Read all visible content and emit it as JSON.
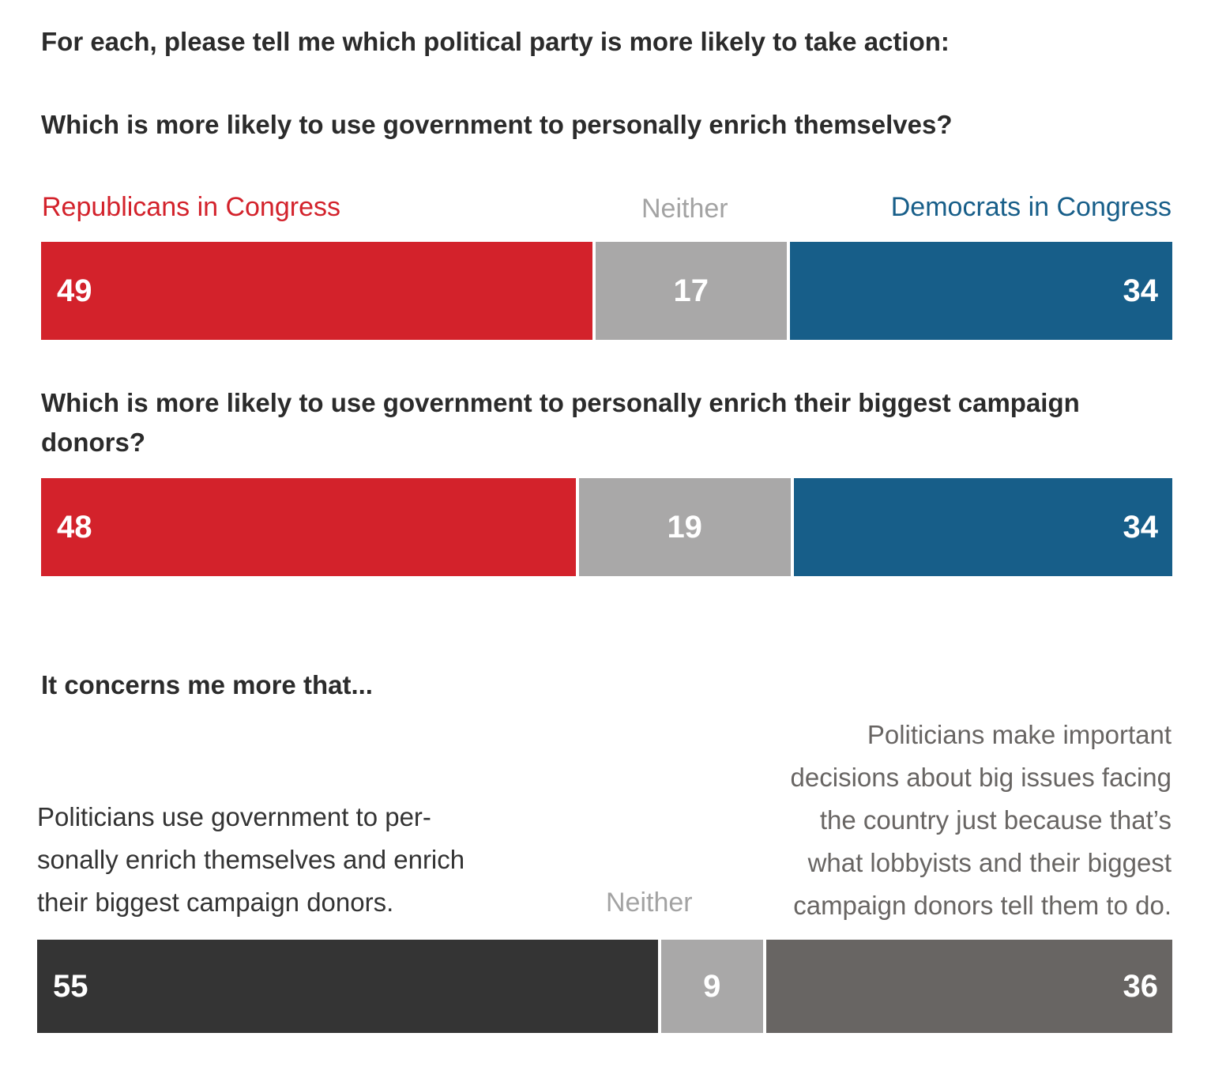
{
  "intro": "For each, please tell me which political party is more likely to take action:",
  "chart_data": [
    {
      "type": "bar",
      "orientation": "horizontal-stacked",
      "title": "Which is more likely to use government to personally enrich themselves?",
      "categories": [
        "Republicans in Congress",
        "Neither",
        "Democrats in Congress"
      ],
      "values": [
        49,
        17,
        34
      ],
      "colors": [
        "#d3222b",
        "#a9a8a8",
        "#175e89"
      ]
    },
    {
      "type": "bar",
      "orientation": "horizontal-stacked",
      "title": "Which is more likely to use government to personally enrich their biggest campaign donors?",
      "categories": [
        "Republicans in Congress",
        "Neither",
        "Democrats in Congress"
      ],
      "values": [
        48,
        19,
        34
      ],
      "colors": [
        "#d3222b",
        "#a9a8a8",
        "#175e89"
      ]
    },
    {
      "type": "bar",
      "orientation": "horizontal-stacked",
      "title": "It concerns me more that...",
      "categories": [
        "Politicians use government to per-sonally enrich themselves and enrich their biggest campaign donors.",
        "Neither",
        "Politicians make important decisions about big issues facing the country just because that’s what lobbyists and their biggest campaign donors tell them to do."
      ],
      "values": [
        55,
        9,
        36
      ],
      "colors": [
        "#343434",
        "#a9a8a8",
        "#686563"
      ]
    }
  ],
  "legend": {
    "left": "Republicans in Congress",
    "middle": "Neither",
    "right": "Democrats in Congress",
    "left_color": "#d3222b",
    "middle_color": "#a3a3a3",
    "right_color": "#175e89"
  },
  "concern": {
    "left_lines": [
      "Politicians use government to per-",
      "sonally enrich themselves and enrich",
      "their biggest campaign donors."
    ],
    "middle": "Neither",
    "right_lines": [
      "Politicians make important",
      "decisions about big issues facing",
      "the country just because that’s",
      "what lobbyists and their biggest",
      "campaign donors tell them to do."
    ]
  }
}
